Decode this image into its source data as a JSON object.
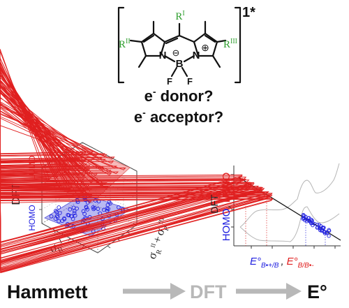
{
  "molecule": {
    "r1": "R",
    "r1_sup": "I",
    "r2": "R",
    "r2_sup": "II",
    "r3": "R",
    "r3_sup": "III",
    "atom_n1": "N",
    "atom_n2": "N",
    "atom_b": "B",
    "atom_f1": "F",
    "atom_f2": "F",
    "minus": "⊖",
    "plus": "⊕",
    "bracket_label": "1*",
    "colors": {
      "substituent": "#2e9e2e",
      "structure": "#111111"
    }
  },
  "question_donor": {
    "e": "e",
    "sup": "-",
    "text": " donor?"
  },
  "question_acceptor": {
    "e": "e",
    "sup": "-",
    "text": " acceptor?"
  },
  "plot3d": {
    "axis_z": "DFT",
    "legend_homo": "HOMO",
    "legend_lumo": "LUMO",
    "axis_x": "σ",
    "axis_x_sub": "R",
    "axis_x_sup": "I",
    "axis_y_part1": "σ",
    "axis_y_sub1": "R",
    "axis_y_sup1": "II",
    "axis_y_plus": "+",
    "axis_y_part2": "σ",
    "axis_y_sub2": "R",
    "axis_y_sup2": "III",
    "colors": {
      "homo": "#2020e0",
      "lumo": "#e02020"
    }
  },
  "plot2d": {
    "ylabel_dft": "DFT",
    "ylabel_homo": "HOMO",
    "ylabel_sep": ", ",
    "ylabel_lumo": "LUMO",
    "xlabel_1": "E°",
    "xlabel_1_sub": "B•+/B",
    "xlabel_sep": ",",
    "xlabel_2": "E°",
    "xlabel_2_sub": "B/B•-"
  },
  "flow": {
    "step1": "Hammett",
    "step2": "DFT",
    "step3": "E°",
    "colors": {
      "step1": "#111111",
      "step2": "#b8b8b8",
      "step3": "#111111",
      "arrow": "#b8b8b8"
    }
  }
}
